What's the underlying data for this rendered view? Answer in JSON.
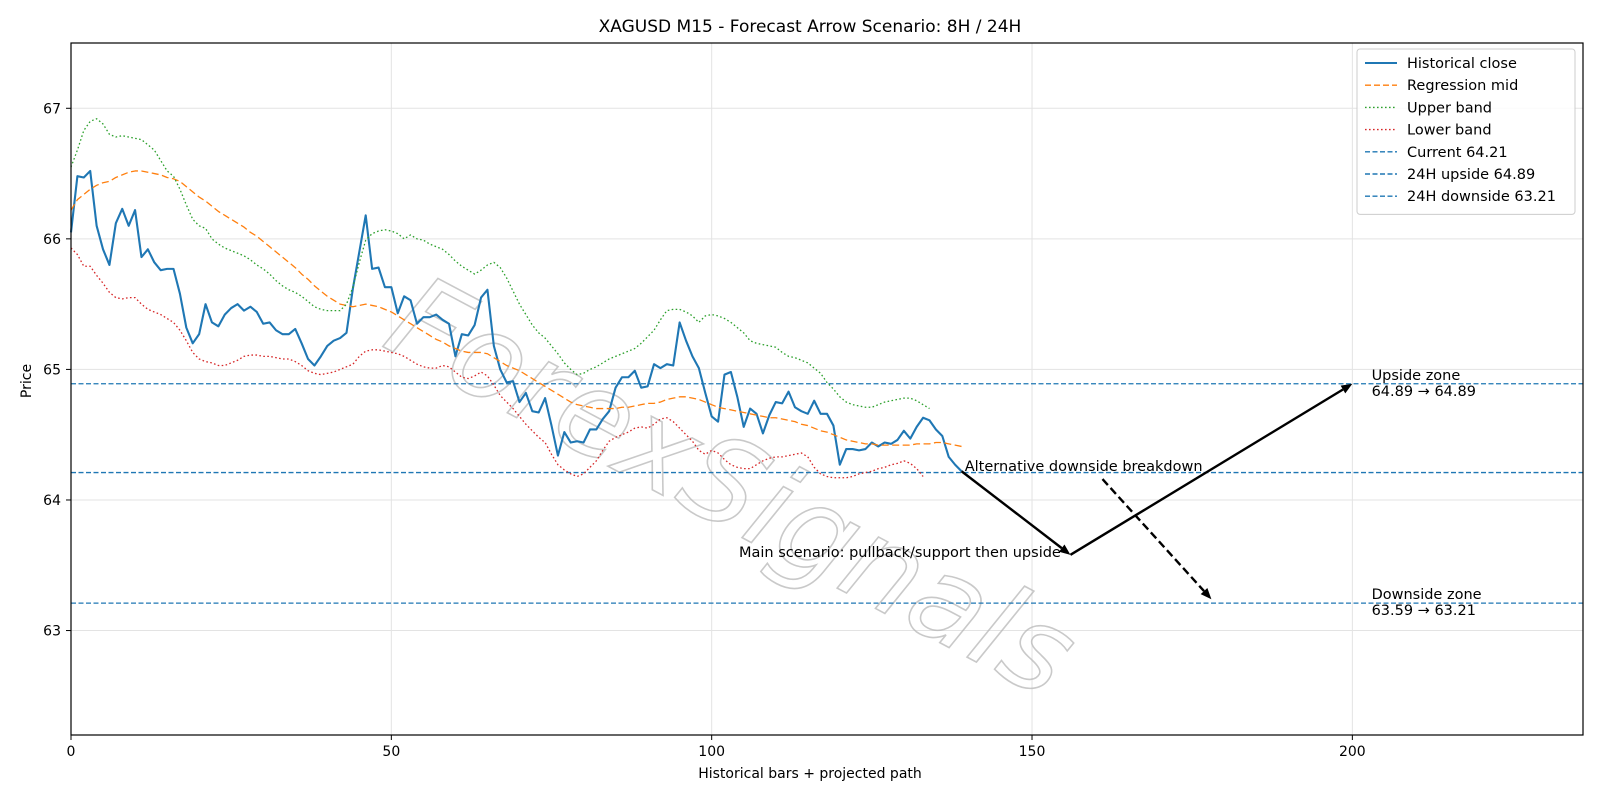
{
  "chart_data": {
    "type": "line",
    "title": "XAGUSD M15 - Forecast Arrow Scenario: 8H / 24H",
    "xlabel": "Historical bars + projected path",
    "ylabel": "Price",
    "xlim": [
      0,
      236
    ],
    "ylim": [
      62.2,
      67.5
    ],
    "xticks": [
      0,
      50,
      100,
      150,
      200
    ],
    "yticks": [
      63,
      64,
      65,
      66,
      67
    ],
    "grid": true,
    "legend_position": "top-right",
    "series": [
      {
        "name": "Historical close",
        "style": "solid",
        "color": "#1f77b4",
        "values": [
          66.05,
          66.48,
          66.47,
          66.52,
          66.1,
          65.92,
          65.8,
          66.12,
          66.23,
          66.1,
          66.22,
          65.86,
          65.92,
          65.82,
          65.76,
          65.77,
          65.77,
          65.58,
          65.32,
          65.2,
          65.27,
          65.5,
          65.36,
          65.33,
          65.42,
          65.47,
          65.5,
          65.45,
          65.48,
          65.44,
          65.35,
          65.36,
          65.3,
          65.27,
          65.27,
          65.31,
          65.2,
          65.08,
          65.03,
          65.1,
          65.18,
          65.22,
          65.24,
          65.28,
          65.62,
          65.9,
          66.18,
          65.77,
          65.78,
          65.63,
          65.63,
          65.43,
          65.56,
          65.53,
          65.35,
          65.4,
          65.4,
          65.42,
          65.38,
          65.35,
          65.1,
          65.27,
          65.26,
          65.34,
          65.55,
          65.61,
          65.18,
          65.0,
          64.9,
          64.91,
          64.75,
          64.82,
          64.68,
          64.67,
          64.78,
          64.57,
          64.34,
          64.52,
          64.44,
          64.45,
          64.44,
          64.54,
          64.54,
          64.62,
          64.68,
          64.86,
          64.94,
          64.94,
          64.99,
          64.86,
          64.87,
          65.04,
          65.01,
          65.04,
          65.03,
          65.36,
          65.22,
          65.1,
          65.01,
          64.82,
          64.64,
          64.6,
          64.96,
          64.98,
          64.79,
          64.56,
          64.7,
          64.66,
          64.51,
          64.65,
          64.75,
          64.74,
          64.83,
          64.71,
          64.68,
          64.66,
          64.76,
          64.66,
          64.66,
          64.57,
          64.27,
          64.39,
          64.39,
          64.38,
          64.39,
          64.44,
          64.41,
          64.44,
          64.43,
          64.46,
          64.53,
          64.47,
          64.56,
          64.63,
          64.61,
          64.54,
          64.49,
          64.33,
          64.27,
          64.22
        ]
      },
      {
        "name": "Regression mid",
        "style": "dashed",
        "color": "#ff7f0e",
        "values": [
          66.22,
          66.3,
          66.34,
          66.38,
          66.41,
          66.43,
          66.44,
          66.47,
          66.49,
          66.51,
          66.52,
          66.52,
          66.51,
          66.5,
          66.49,
          66.47,
          66.46,
          66.44,
          66.4,
          66.36,
          66.32,
          66.29,
          66.25,
          66.21,
          66.18,
          66.15,
          66.12,
          66.09,
          66.05,
          66.02,
          65.98,
          65.94,
          65.9,
          65.86,
          65.82,
          65.78,
          65.73,
          65.69,
          65.64,
          65.6,
          65.56,
          65.53,
          65.5,
          65.49,
          65.48,
          65.49,
          65.5,
          65.49,
          65.48,
          65.46,
          65.44,
          65.41,
          65.38,
          65.35,
          65.32,
          65.29,
          65.26,
          65.23,
          65.21,
          65.18,
          65.16,
          65.14,
          65.13,
          65.13,
          65.13,
          65.12,
          65.09,
          65.06,
          65.03,
          65.01,
          64.99,
          64.96,
          64.93,
          64.9,
          64.87,
          64.84,
          64.81,
          64.78,
          64.75,
          64.73,
          64.72,
          64.71,
          64.7,
          64.7,
          64.7,
          64.7,
          64.71,
          64.71,
          64.72,
          64.73,
          64.74,
          64.74,
          64.75,
          64.77,
          64.78,
          64.79,
          64.79,
          64.78,
          64.77,
          64.75,
          64.73,
          64.71,
          64.7,
          64.69,
          64.68,
          64.67,
          64.66,
          64.65,
          64.64,
          64.63,
          64.63,
          64.62,
          64.61,
          64.6,
          64.58,
          64.57,
          64.55,
          64.53,
          64.52,
          64.5,
          64.48,
          64.46,
          64.45,
          64.44,
          64.43,
          64.43,
          64.42,
          64.42,
          64.42,
          64.42,
          64.42,
          64.42,
          64.43,
          64.43,
          64.43,
          64.44,
          64.44,
          64.43,
          64.42,
          64.41
        ]
      },
      {
        "name": "Upper band",
        "style": "dotted",
        "color": "#2ca02c",
        "values": [
          66.55,
          66.68,
          66.83,
          66.9,
          66.92,
          66.88,
          66.8,
          66.78,
          66.79,
          66.78,
          66.77,
          66.76,
          66.72,
          66.68,
          66.6,
          66.52,
          66.48,
          66.38,
          66.26,
          66.15,
          66.1,
          66.08,
          66.0,
          65.96,
          65.93,
          65.91,
          65.89,
          65.87,
          65.84,
          65.8,
          65.77,
          65.73,
          65.68,
          65.64,
          65.61,
          65.59,
          65.56,
          65.52,
          65.48,
          65.46,
          65.45,
          65.45,
          65.45,
          65.5,
          65.63,
          65.82,
          65.99,
          66.04,
          66.06,
          66.07,
          66.06,
          66.04,
          66.0,
          66.03,
          66.0,
          65.99,
          65.96,
          65.94,
          65.92,
          65.88,
          65.83,
          65.79,
          65.76,
          65.73,
          65.76,
          65.8,
          65.82,
          65.78,
          65.7,
          65.6,
          65.5,
          65.42,
          65.34,
          65.28,
          65.24,
          65.18,
          65.12,
          65.05,
          65.0,
          64.96,
          64.97,
          65.0,
          65.02,
          65.05,
          65.08,
          65.1,
          65.12,
          65.14,
          65.16,
          65.2,
          65.25,
          65.3,
          65.38,
          65.45,
          65.46,
          65.46,
          65.44,
          65.41,
          65.36,
          65.41,
          65.42,
          65.41,
          65.39,
          65.36,
          65.32,
          65.28,
          65.22,
          65.2,
          65.19,
          65.18,
          65.17,
          65.13,
          65.1,
          65.09,
          65.07,
          65.05,
          65.01,
          64.97,
          64.9,
          64.85,
          64.79,
          64.75,
          64.73,
          64.72,
          64.71,
          64.71,
          64.73,
          64.75,
          64.76,
          64.77,
          64.78,
          64.78,
          64.76,
          64.73,
          64.7
        ]
      },
      {
        "name": "Lower band",
        "style": "dotted",
        "color": "#d62728",
        "values": [
          65.93,
          65.88,
          65.79,
          65.79,
          65.72,
          65.66,
          65.59,
          65.55,
          65.54,
          65.55,
          65.55,
          65.5,
          65.46,
          65.44,
          65.42,
          65.39,
          65.36,
          65.3,
          65.22,
          65.13,
          65.08,
          65.06,
          65.05,
          65.03,
          65.03,
          65.05,
          65.07,
          65.1,
          65.11,
          65.11,
          65.1,
          65.1,
          65.09,
          65.08,
          65.08,
          65.06,
          65.03,
          64.99,
          64.97,
          64.96,
          64.97,
          64.98,
          65.0,
          65.02,
          65.04,
          65.1,
          65.14,
          65.15,
          65.15,
          65.14,
          65.13,
          65.12,
          65.1,
          65.07,
          65.04,
          65.02,
          65.01,
          65.01,
          65.03,
          65.02,
          64.98,
          64.94,
          64.93,
          64.95,
          64.98,
          64.95,
          64.88,
          64.8,
          64.75,
          64.7,
          64.64,
          64.58,
          64.53,
          64.48,
          64.44,
          64.35,
          64.27,
          64.23,
          64.2,
          64.18,
          64.2,
          64.25,
          64.3,
          64.38,
          64.45,
          64.48,
          64.5,
          64.52,
          64.55,
          64.56,
          64.55,
          64.58,
          64.62,
          64.63,
          64.6,
          64.55,
          64.5,
          64.45,
          64.38,
          64.35,
          64.38,
          64.36,
          64.31,
          64.27,
          64.25,
          64.24,
          64.24,
          64.27,
          64.3,
          64.32,
          64.33,
          64.33,
          64.34,
          64.35,
          64.36,
          64.33,
          64.25,
          64.2,
          64.18,
          64.17,
          64.17,
          64.17,
          64.18,
          64.2,
          64.21,
          64.22,
          64.24,
          64.25,
          64.27,
          64.28,
          64.3,
          64.28,
          64.24,
          64.18
        ]
      }
    ],
    "hlines": [
      {
        "name": "Current 64.21",
        "y": 64.21,
        "style": "dashed",
        "color": "#1f77b4"
      },
      {
        "name": "24H upside 64.89",
        "y": 64.89,
        "style": "dashed",
        "color": "#1f77b4"
      },
      {
        "name": "24H downside 63.21",
        "y": 63.21,
        "style": "dashed",
        "color": "#1f77b4"
      }
    ],
    "arrows": [
      {
        "from": [
          139,
          64.22
        ],
        "to": [
          156,
          63.58
        ],
        "style": "solid",
        "color": "#000000"
      },
      {
        "from": [
          156,
          63.58
        ],
        "to": [
          200,
          64.89
        ],
        "style": "solid",
        "color": "#000000"
      },
      {
        "from": [
          161,
          64.16
        ],
        "to": [
          178,
          63.24
        ],
        "style": "dashed",
        "color": "#000000"
      }
    ],
    "annotations": [
      {
        "text": "Alternative downside breakdown",
        "x": 139.5,
        "y": 64.26,
        "anchor": "start"
      },
      {
        "text": "Main scenario: pullback/support then upside",
        "x": 154.5,
        "y": 63.6,
        "anchor": "end"
      }
    ],
    "zones": [
      {
        "title": "Upside zone",
        "range": "64.89 → 64.89",
        "x": 203,
        "y": 64.89
      },
      {
        "title": "Downside zone",
        "range": "63.59 → 63.21",
        "x": 203,
        "y": 63.21
      }
    ],
    "watermark": "ForexSignals"
  }
}
